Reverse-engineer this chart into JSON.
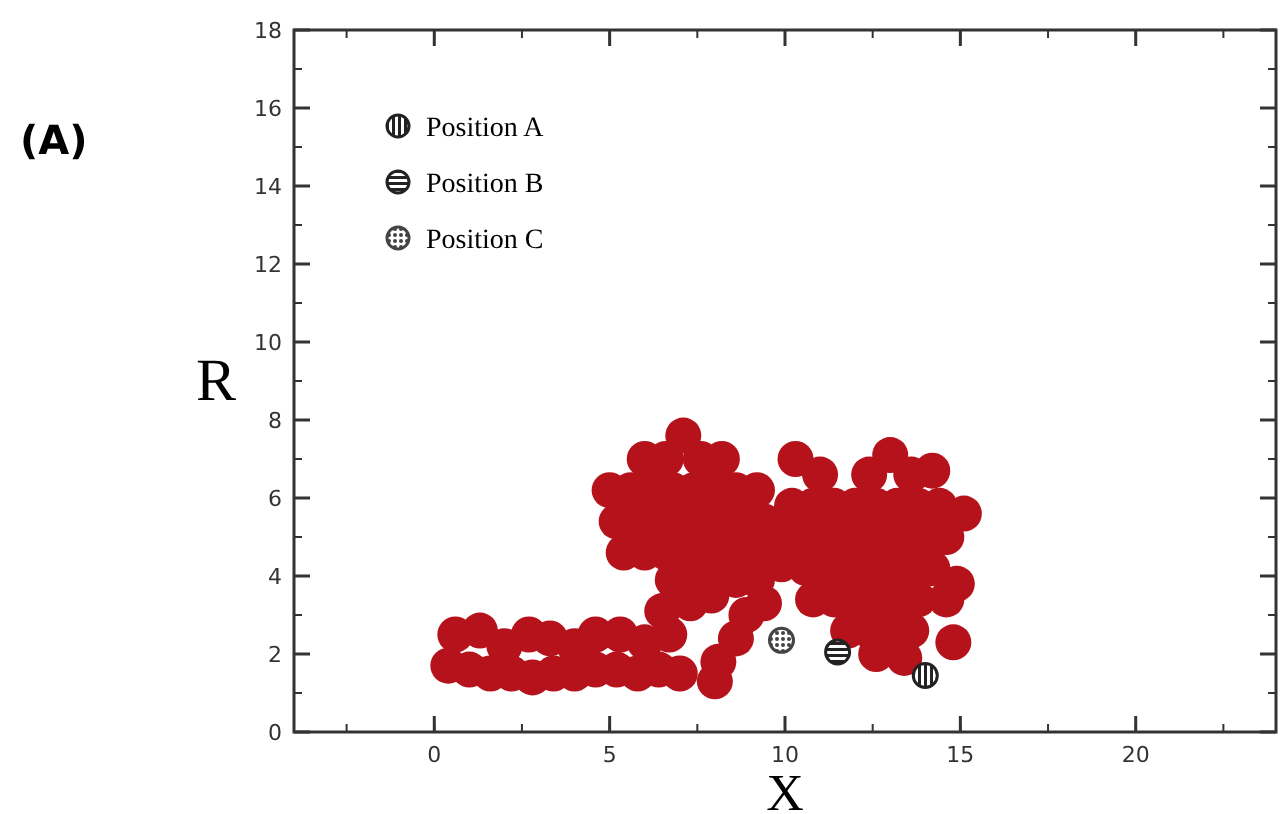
{
  "chart_data": {
    "type": "scatter",
    "annotations": [
      "(A)"
    ],
    "xlabel": "X",
    "ylabel": "R",
    "xlim": [
      -4,
      24
    ],
    "ylim": [
      0,
      18
    ],
    "xticks": [
      0,
      5,
      10,
      15,
      20
    ],
    "yticks": [
      0,
      2,
      4,
      6,
      8,
      10,
      12,
      14,
      16,
      18
    ],
    "grid": false,
    "legend": "top left",
    "marker": "circle",
    "series": [
      {
        "color": "#b5121b",
        "x": [
          0.4,
          1.0,
          1.6,
          2.2,
          2.8,
          3.4,
          4.0,
          4.6,
          5.2,
          5.8,
          6.4,
          7.0,
          0.6,
          1.3,
          2.0,
          2.7,
          3.3,
          4.0,
          4.6,
          5.3,
          6.0,
          6.7,
          8.0,
          8.1,
          8.6,
          8.9,
          6.5,
          7.3,
          7.9,
          9.4,
          5.0,
          5.6,
          6.2,
          6.8,
          7.4,
          8.0,
          8.6,
          9.2,
          6.0,
          6.6,
          7.1,
          7.6,
          8.2,
          5.2,
          5.8,
          6.4,
          7.0,
          7.6,
          8.2,
          8.8,
          9.4,
          10.0,
          5.4,
          6.0,
          6.6,
          7.2,
          7.8,
          8.4,
          9.0,
          9.6,
          6.8,
          7.4,
          8.0,
          8.6,
          9.2,
          9.9,
          10.3,
          11.0,
          12.4,
          13.0,
          13.6,
          14.2,
          10.2,
          10.8,
          11.4,
          12.0,
          12.6,
          13.2,
          13.8,
          14.4,
          15.1,
          10.4,
          11.0,
          11.6,
          12.2,
          12.8,
          13.4,
          14.0,
          14.6,
          10.6,
          11.2,
          11.8,
          12.4,
          13.0,
          13.6,
          14.2,
          14.9,
          10.8,
          11.4,
          12.0,
          12.6,
          13.2,
          13.8,
          14.6,
          11.8,
          12.4,
          13.0,
          13.6,
          14.8,
          12.6,
          13.4
        ],
        "values": [
          1.7,
          1.6,
          1.5,
          1.5,
          1.4,
          1.5,
          1.5,
          1.6,
          1.6,
          1.5,
          1.6,
          1.5,
          2.5,
          2.6,
          2.2,
          2.5,
          2.4,
          2.2,
          2.5,
          2.5,
          2.3,
          2.5,
          1.3,
          1.8,
          2.4,
          3.0,
          3.1,
          3.3,
          3.5,
          3.3,
          6.2,
          6.2,
          6.2,
          6.2,
          6.2,
          6.2,
          6.2,
          6.2,
          7.0,
          7.0,
          7.6,
          7.0,
          7.0,
          5.4,
          5.4,
          5.4,
          5.4,
          5.4,
          5.4,
          5.4,
          5.4,
          5.4,
          4.6,
          4.6,
          4.6,
          4.6,
          4.6,
          4.6,
          4.6,
          4.6,
          3.9,
          3.9,
          3.9,
          3.9,
          3.9,
          4.3,
          7.0,
          6.6,
          6.6,
          7.1,
          6.6,
          6.7,
          5.8,
          5.8,
          5.8,
          5.8,
          5.8,
          5.8,
          5.8,
          5.8,
          5.6,
          5.0,
          5.0,
          5.0,
          5.0,
          5.0,
          5.0,
          5.0,
          5.0,
          4.2,
          4.2,
          4.2,
          4.2,
          4.2,
          4.2,
          4.2,
          3.8,
          3.4,
          3.4,
          3.4,
          3.4,
          3.4,
          3.4,
          3.4,
          2.6,
          2.6,
          2.6,
          2.6,
          2.3,
          2.0,
          1.9
        ]
      },
      {
        "name": "Position A",
        "color": "#222222",
        "x": [
          14.0
        ],
        "values": [
          1.45
        ]
      },
      {
        "name": "Position B",
        "color": "#222222",
        "x": [
          11.5
        ],
        "values": [
          2.05
        ]
      },
      {
        "name": "Position C",
        "color": "#444444",
        "x": [
          9.9
        ],
        "values": [
          2.35
        ]
      }
    ]
  }
}
